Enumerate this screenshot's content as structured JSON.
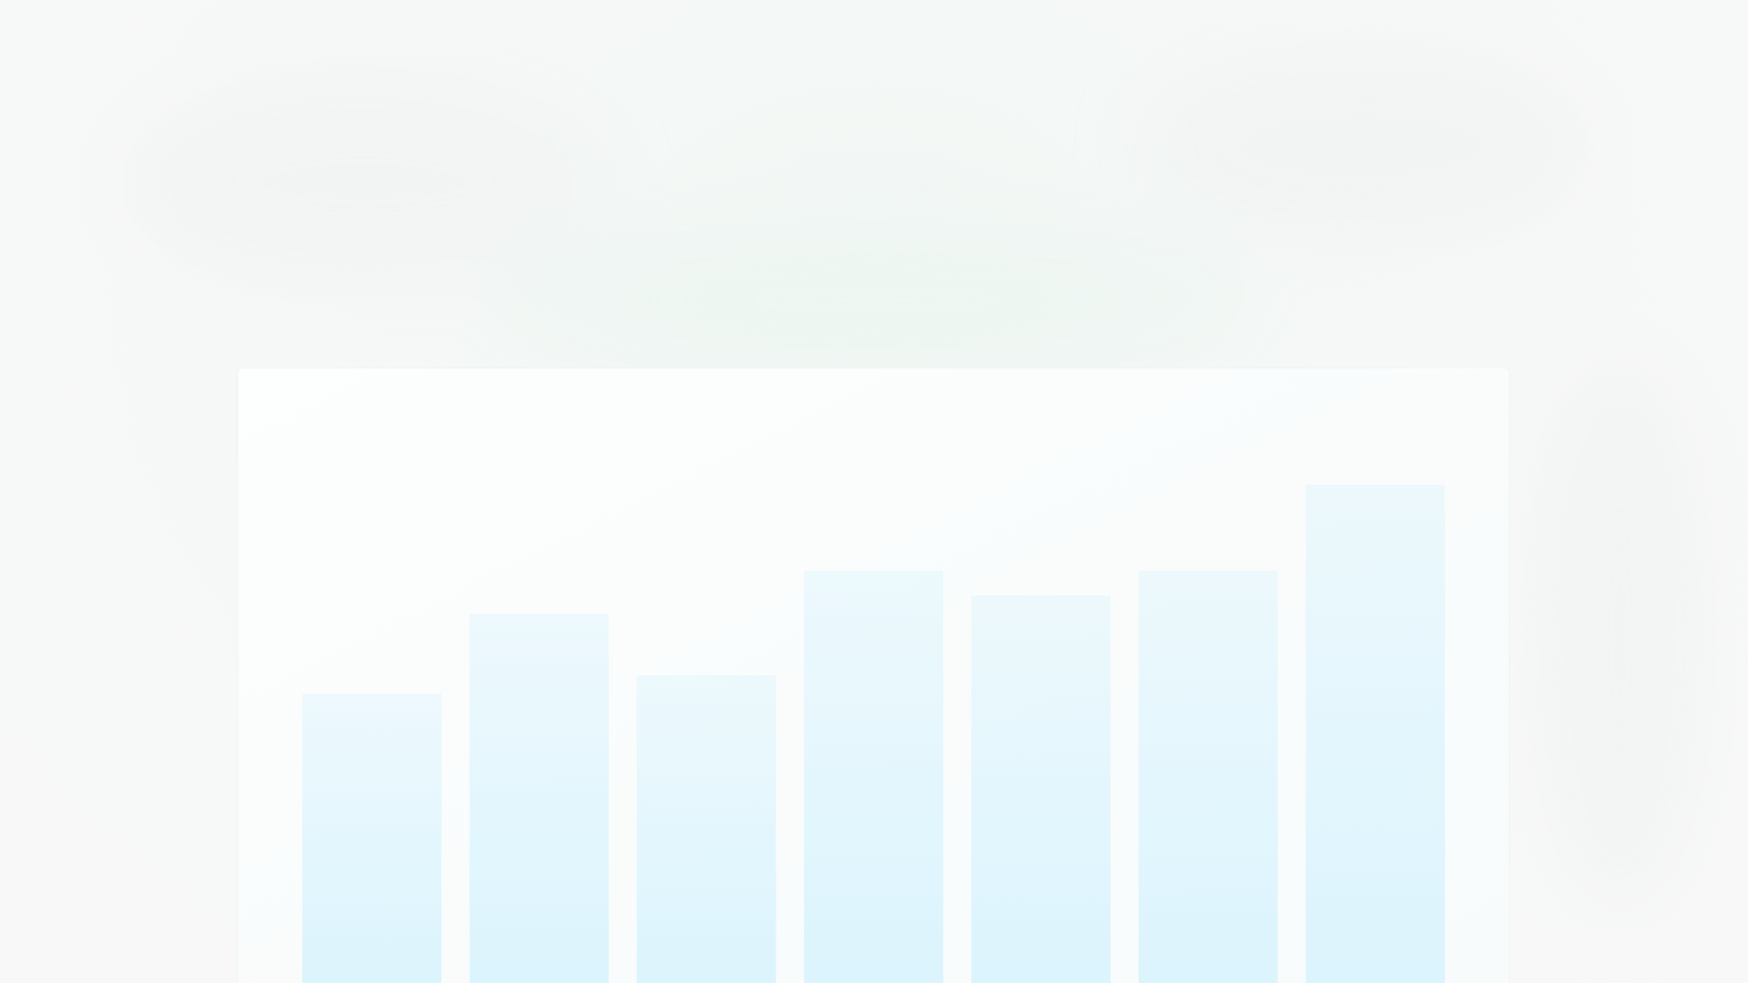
{
  "chart_data": {
    "type": "bar",
    "categories": [
      null,
      null,
      null,
      null,
      null,
      null,
      null
    ],
    "values": [
      47,
      60,
      50,
      67,
      63,
      67,
      81
    ],
    "color": "#dcf4fd",
    "ylim": [
      0,
      100
    ]
  }
}
